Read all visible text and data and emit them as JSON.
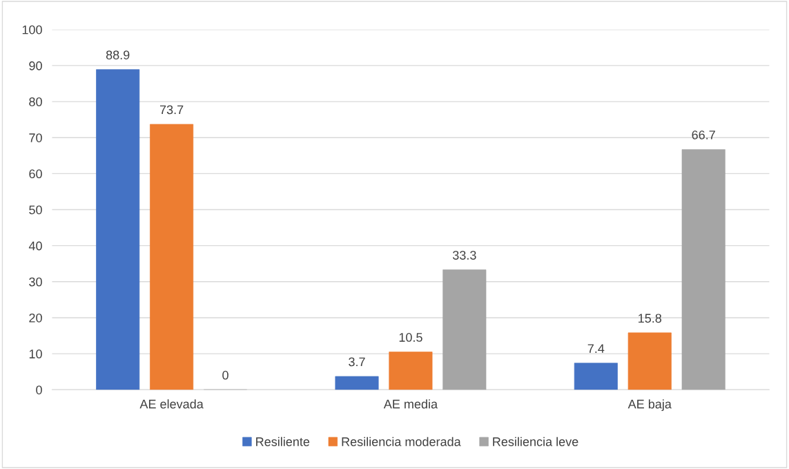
{
  "chart_data": {
    "type": "bar",
    "categories": [
      "AE elevada",
      "AE media",
      "AE baja"
    ],
    "series": [
      {
        "name": "Resiliente",
        "color": "#4472c4",
        "values": [
          88.9,
          3.7,
          7.4
        ]
      },
      {
        "name": "Resiliencia moderada",
        "color": "#ed7d31",
        "values": [
          73.7,
          10.5,
          15.8
        ]
      },
      {
        "name": "Resiliencia leve",
        "color": "#a5a5a5",
        "values": [
          0,
          33.3,
          66.7
        ]
      }
    ],
    "ylim": [
      0,
      100
    ],
    "yticks": [
      0,
      10,
      20,
      30,
      40,
      50,
      60,
      70,
      80,
      90,
      100
    ],
    "grid": "y",
    "legend": "bottom",
    "data_labels": true
  }
}
